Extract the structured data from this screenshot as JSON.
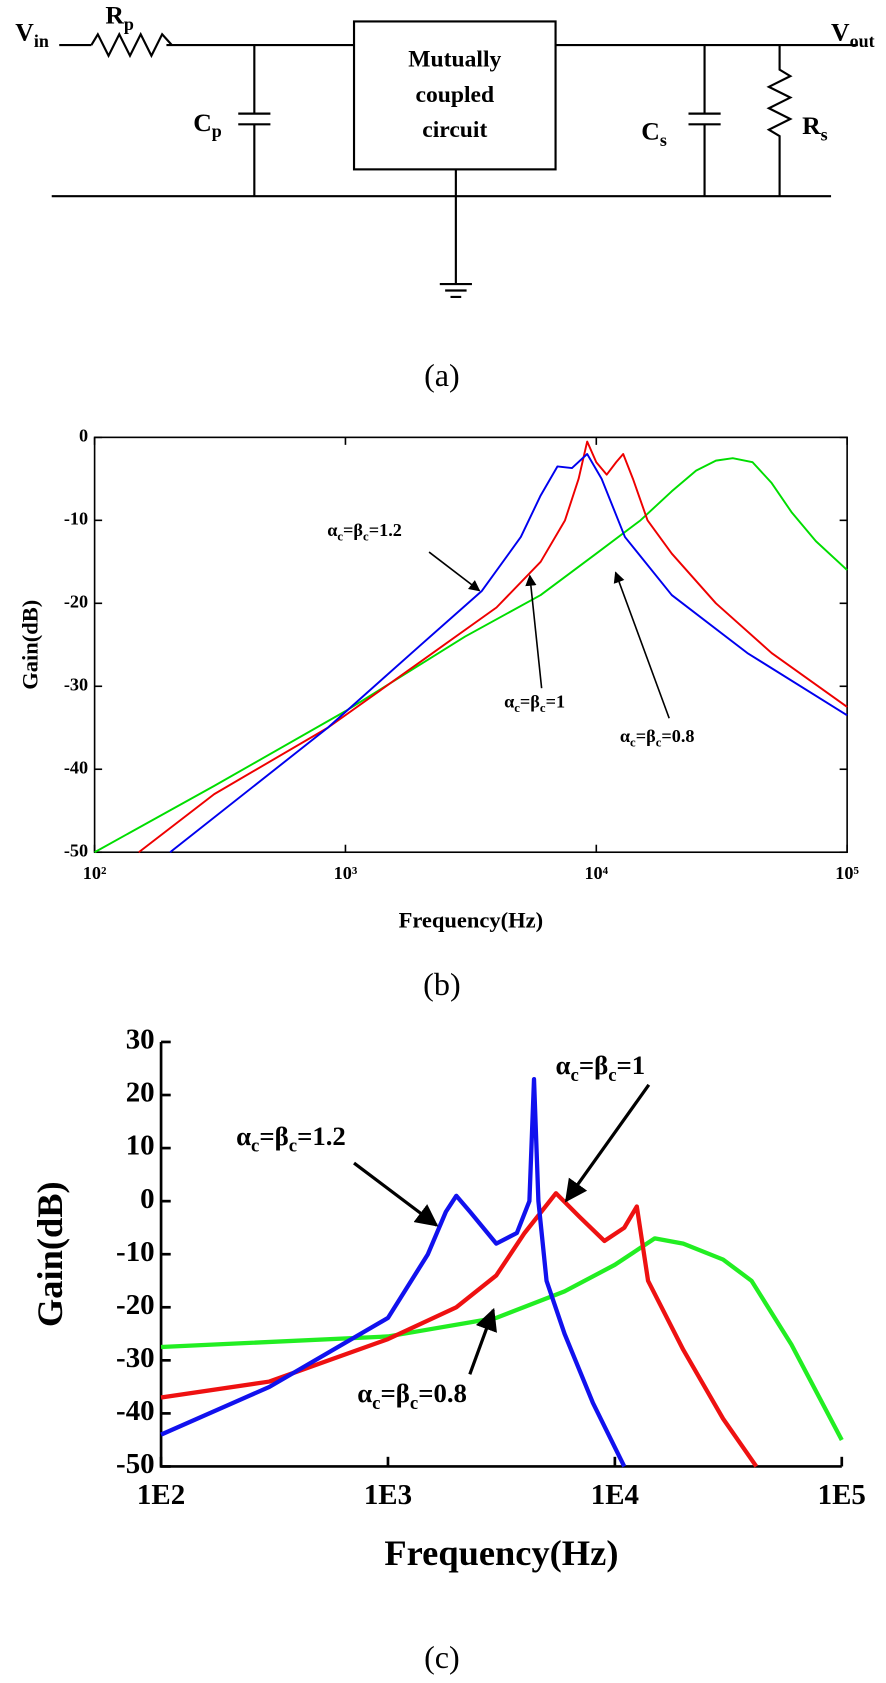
{
  "diagram": {
    "panel_label": "(a)",
    "labels": {
      "vin": [
        "V",
        "in"
      ],
      "rp": [
        "R",
        "p"
      ],
      "cp": [
        "C",
        "p"
      ],
      "cs": [
        "C",
        "s"
      ],
      "rs": [
        "R",
        "s"
      ],
      "vout": [
        "V",
        "out"
      ]
    },
    "box": [
      "Mutually",
      "coupled",
      "circuit"
    ]
  },
  "chart_data": [
    {
      "type": "line",
      "panel_label": "(b)",
      "x_label": "Frequency(Hz)",
      "y_label": "Gain(dB)",
      "xscale": "log",
      "xlim": [
        100,
        100000
      ],
      "xticks": [
        {
          "value": 100,
          "label": "10²"
        },
        {
          "value": 1000,
          "label": "10³"
        },
        {
          "value": 10000,
          "label": "10⁴"
        },
        {
          "value": 100000,
          "label": "10⁵"
        }
      ],
      "ylim": [
        -50,
        0
      ],
      "yticks": [
        -50,
        -40,
        -30,
        -20,
        -10,
        0
      ],
      "annotations": [
        [
          "α",
          "c",
          "=β",
          "c",
          "=1.2"
        ],
        [
          "α",
          "c",
          "=β",
          "c",
          "=1"
        ],
        [
          "α",
          "c",
          "=β",
          "c",
          "=0.8"
        ]
      ],
      "series": [
        {
          "color": "#00dd00",
          "x": [
            100,
            300,
            1000,
            3000,
            6000,
            10000,
            15000,
            20000,
            25000,
            30000,
            35000,
            42000,
            50000,
            60000,
            75000,
            100000
          ],
          "values": [
            -50,
            -42,
            -33,
            -24,
            -19,
            -14,
            -10,
            -6.5,
            -4,
            -2.8,
            -2.5,
            -3,
            -5.5,
            -9,
            -12.5,
            -16
          ]
        },
        {
          "color": "#ee0000",
          "x": [
            150,
            300,
            850,
            2000,
            4000,
            6000,
            7500,
            8500,
            9200,
            10000,
            11000,
            12000,
            12800,
            14000,
            16000,
            20000,
            30000,
            50000,
            100000
          ],
          "values": [
            -50,
            -43,
            -35,
            -27,
            -20.5,
            -15,
            -10,
            -5,
            -0.5,
            -3,
            -4.5,
            -3,
            -2,
            -5,
            -10,
            -14,
            -20,
            -26,
            -32.5
          ]
        },
        {
          "color": "#0000ee",
          "x": [
            200,
            850,
            2000,
            3500,
            5000,
            6000,
            7000,
            8000,
            9200,
            10500,
            13000,
            20000,
            40000,
            100000
          ],
          "values": [
            -50,
            -35,
            -25,
            -18.5,
            -12,
            -7,
            -3.5,
            -3.7,
            -2,
            -5,
            -12,
            -19,
            -26,
            -33.5
          ]
        }
      ]
    },
    {
      "type": "line",
      "panel_label": "(c)",
      "x_label": "Frequency(Hz)",
      "y_label": "Gain(dB)",
      "xscale": "log",
      "xlim": [
        100,
        100000
      ],
      "xticks": [
        {
          "value": 100,
          "label": "1E2"
        },
        {
          "value": 1000,
          "label": "1E3"
        },
        {
          "value": 10000,
          "label": "1E4"
        },
        {
          "value": 100000,
          "label": "1E5"
        }
      ],
      "ylim": [
        -50,
        30
      ],
      "yticks": [
        -50,
        -40,
        -30,
        -20,
        -10,
        0,
        10,
        20,
        30
      ],
      "annotations": [
        [
          "α",
          "c",
          "=β",
          "c",
          "=1.2"
        ],
        [
          "α",
          "c",
          "=β",
          "c",
          "=1"
        ],
        [
          "α",
          "c",
          "=β",
          "c",
          "=0.8"
        ]
      ],
      "series": [
        {
          "color": "#22ee22",
          "x": [
            100,
            1000,
            3000,
            6000,
            10000,
            15000,
            20000,
            30000,
            40000,
            60000,
            100000
          ],
          "values": [
            -27.5,
            -25.5,
            -22,
            -17,
            -12,
            -7,
            -8,
            -11,
            -15,
            -27,
            -45
          ]
        },
        {
          "color": "#ee1111",
          "x": [
            100,
            300,
            1000,
            2000,
            3000,
            4000,
            5500,
            7000,
            9000,
            11000,
            12500,
            14000,
            20000,
            30000,
            42000
          ],
          "values": [
            -37,
            -34,
            -26,
            -20,
            -14,
            -6,
            1.5,
            -3,
            -7.5,
            -5,
            -1,
            -15,
            -28,
            -41,
            -50
          ]
        },
        {
          "color": "#1111ee",
          "x": [
            100,
            300,
            1000,
            1500,
            1800,
            2000,
            2300,
            3000,
            3700,
            4200,
            4400,
            4600,
            5000,
            6000,
            8000,
            11000
          ],
          "values": [
            -44,
            -35,
            -22,
            -10,
            -2,
            1,
            -2,
            -8,
            -6,
            0,
            23,
            0,
            -15,
            -25,
            -38,
            -50
          ]
        }
      ]
    }
  ]
}
